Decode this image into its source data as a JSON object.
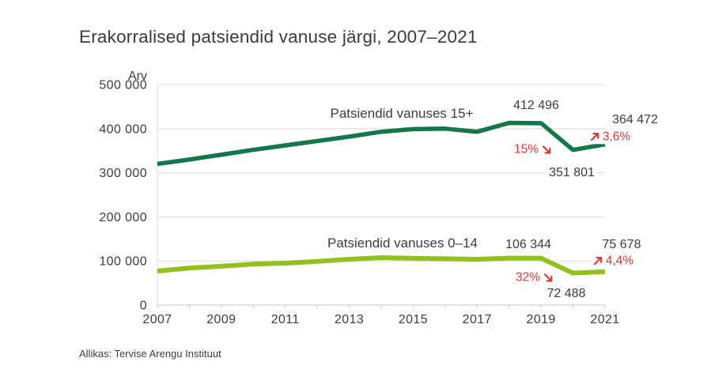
{
  "title": "Erakorralised patsiendid vanuse järgi, 2007–2021",
  "footer": {
    "source": "Allikas: Tervise Arengu Instituut"
  },
  "colors": {
    "series_15plus": "#14774a",
    "series_0_14": "#90c11d",
    "annotation_red": "#d63c35",
    "text": "#3b3b3b",
    "gridline": "#dcdcdc",
    "axis": "#c6c6c6"
  },
  "chart_data": {
    "type": "line",
    "title": "Erakorralised patsiendid vanuse järgi, 2007–2021",
    "xlabel": "",
    "ylabel": "Arv",
    "ylim": [
      0,
      500000
    ],
    "grid": "horizontal",
    "legend_position": "inline-labels-above-lines",
    "x": [
      2007,
      2008,
      2009,
      2010,
      2011,
      2012,
      2013,
      2014,
      2015,
      2016,
      2017,
      2018,
      2019,
      2020,
      2021
    ],
    "x_tick_labels": [
      "2007",
      "2009",
      "2011",
      "2013",
      "2015",
      "2017",
      "2019",
      "2021"
    ],
    "y_ticks": [
      {
        "value": 0,
        "label": "0"
      },
      {
        "value": 100000,
        "label": "100 000"
      },
      {
        "value": 200000,
        "label": "200 000"
      },
      {
        "value": 300000,
        "label": "300 000"
      },
      {
        "value": 400000,
        "label": "400 000"
      },
      {
        "value": 500000,
        "label": "500 000"
      }
    ],
    "series": [
      {
        "name": "Patsiendid vanuses 15+",
        "color": "#14774a",
        "width": 5.5,
        "values": [
          320000,
          330000,
          341000,
          352000,
          362000,
          372000,
          382000,
          393000,
          399000,
          400000,
          393000,
          413000,
          412496,
          351801,
          364472
        ]
      },
      {
        "name": "Patsiendid vanuses 0–14",
        "color": "#90c11d",
        "width": 6,
        "values": [
          77000,
          84000,
          88000,
          93000,
          95000,
          99000,
          104000,
          107500,
          106000,
          105000,
          104000,
          106500,
          106344,
          72488,
          75678
        ]
      }
    ],
    "annotations": {
      "peak_15plus": "412 496",
      "end_15plus": "364 472",
      "rise_15plus": "3,6%",
      "drop_15plus": "15%",
      "low_15plus": "351 801",
      "peak_0_14": "106 344",
      "end_0_14": "75 678",
      "rise_0_14": "4,4%",
      "drop_0_14": "32%",
      "low_0_14": "72 488"
    }
  }
}
